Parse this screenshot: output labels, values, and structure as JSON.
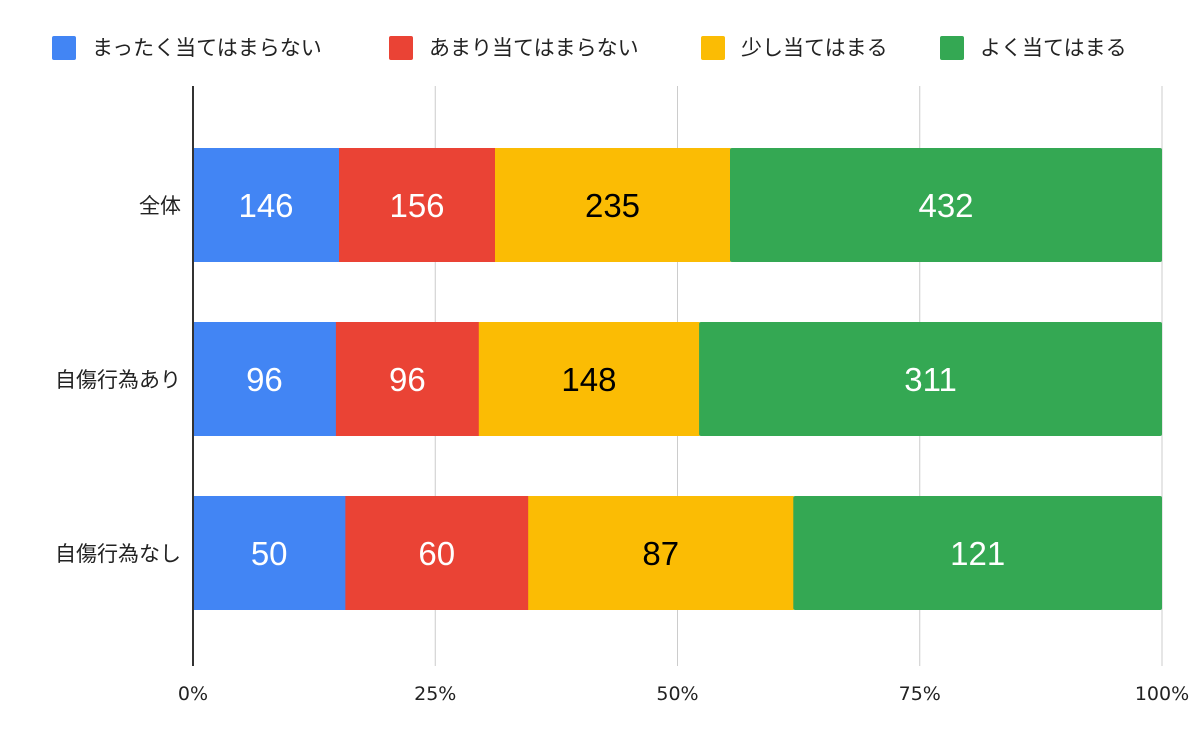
{
  "chart_data": {
    "type": "bar",
    "orientation": "horizontal",
    "stacking": "percent",
    "categories": [
      "全体",
      "自傷行為あり",
      "自傷行為なし"
    ],
    "series": [
      {
        "name": "まったく当てはまらない",
        "color": "#4285f4",
        "label_color": "#ffffff",
        "values": [
          146,
          96,
          50
        ]
      },
      {
        "name": "あまり当てはまらない",
        "color": "#ea4335",
        "label_color": "#ffffff",
        "values": [
          156,
          96,
          60
        ]
      },
      {
        "name": "少し当てはまる",
        "color": "#fbbc04",
        "label_color": "#000000",
        "values": [
          235,
          148,
          87
        ]
      },
      {
        "name": "よく当てはまる",
        "color": "#34a853",
        "label_color": "#ffffff",
        "values": [
          432,
          311,
          121
        ]
      }
    ],
    "x_ticks": [
      "0%",
      "25%",
      "50%",
      "75%",
      "100%"
    ],
    "xlim": [
      0,
      100
    ],
    "legend": "top",
    "grid": true,
    "title": "",
    "xlabel": "",
    "ylabel": ""
  }
}
